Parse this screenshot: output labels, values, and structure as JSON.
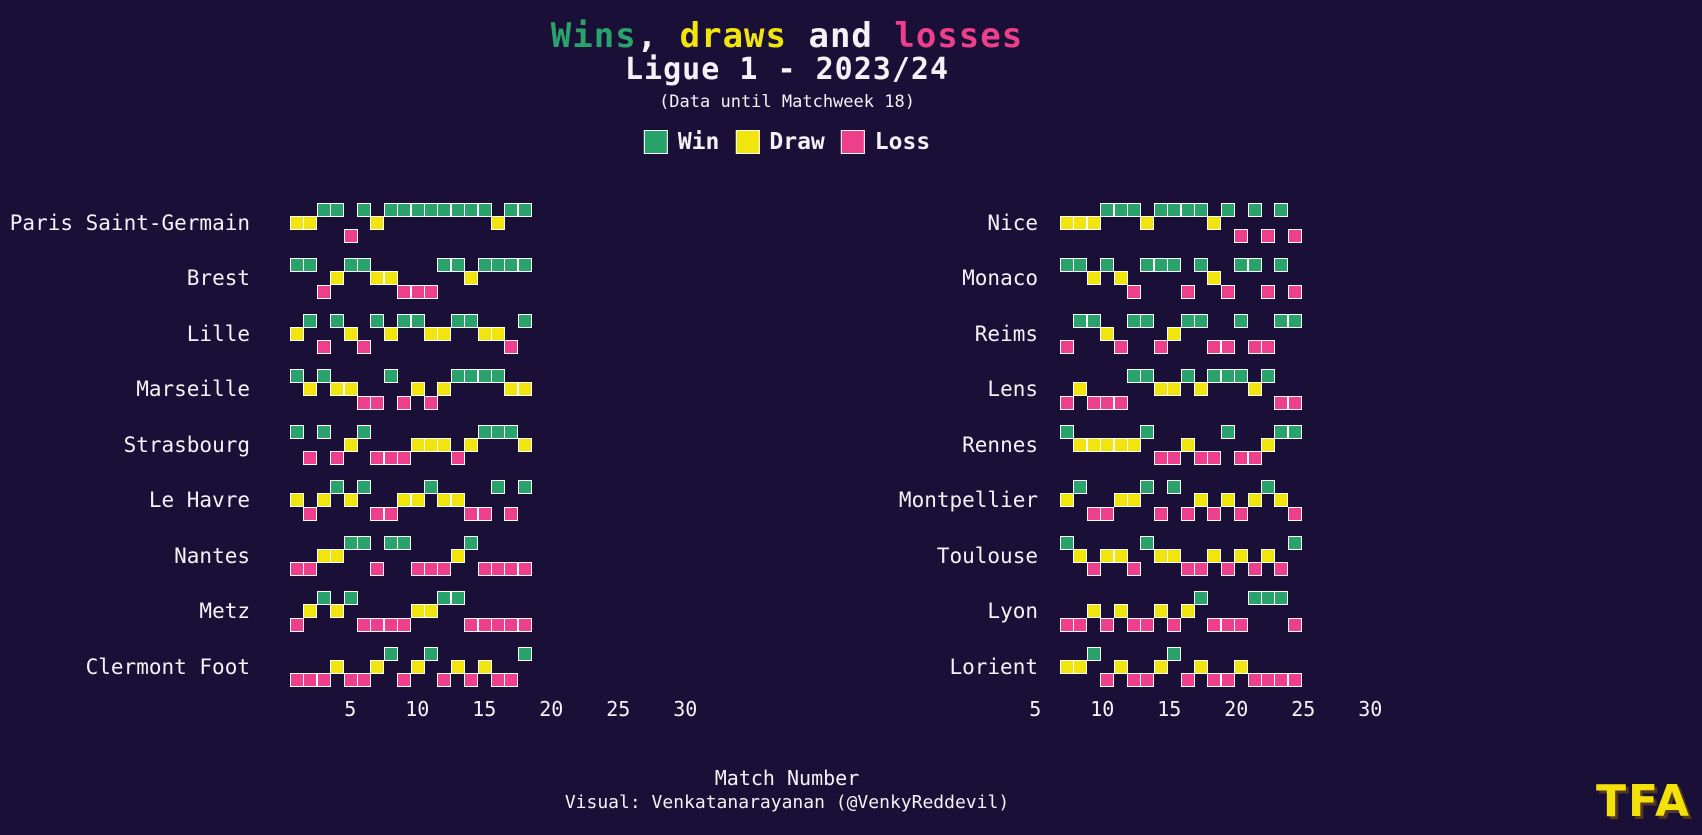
{
  "title": {
    "parts": [
      {
        "text": "Wins",
        "color_key": "win"
      },
      {
        "text": ", ",
        "color_key": "text"
      },
      {
        "text": "draws",
        "color_key": "draw"
      },
      {
        "text": " and ",
        "color_key": "text"
      },
      {
        "text": "losses",
        "color_key": "loss"
      }
    ]
  },
  "subtitle": "Ligue 1 - 2023/24",
  "note": "(Data until Matchweek 18)",
  "legend": [
    {
      "label": "Win",
      "key": "W"
    },
    {
      "label": "Draw",
      "key": "D"
    },
    {
      "label": "Loss",
      "key": "L"
    }
  ],
  "colors": {
    "win": "#2aa26b",
    "draw": "#f2e50e",
    "loss": "#ee3f8d",
    "background": "#1a0f36",
    "text": "#f5f1f7",
    "logo": "#f5e10a"
  },
  "xlabel": "Match Number",
  "credit": "Visual: Venkatanarayanan (@VenkyReddevil)",
  "logo_text": "TFA",
  "chart_data": {
    "type": "heatmap",
    "title": "Wins, draws and losses — Ligue 1 2023/24 (Data until Matchweek 18)",
    "xlabel": "Match Number",
    "x_ticks": [
      5,
      10,
      15,
      20,
      25,
      30
    ],
    "matchweeks": 18,
    "levels": {
      "W": "Win (top row)",
      "D": "Draw (middle row)",
      "L": "Loss (bottom row)"
    },
    "columns": [
      {
        "side": "left",
        "teams": [
          {
            "name": "Paris Saint-Germain",
            "results": "DDWWLWDWWWWWWWWDWW"
          },
          {
            "name": "Brest",
            "results": "WWLDWWDDLLLWWDWWWW"
          },
          {
            "name": "Lille",
            "results": "DWLWDLWDWWDDWWDDLW"
          },
          {
            "name": "Marseille",
            "results": "WDWDDLLWLDLDWWWWDD"
          },
          {
            "name": "Strasbourg",
            "results": "WLWLDWLLLDDDLDWWWD"
          },
          {
            "name": "Le Havre",
            "results": "DLDWDWLLDDWDDLLWLW"
          },
          {
            "name": "Nantes",
            "results": "LLDDWWLWWLLLDWLLLL"
          },
          {
            "name": "Metz",
            "results": "LDWDWLLLLDDWWLLLLL"
          },
          {
            "name": "Clermont Foot",
            "results": "LLLDLLDWLDWLDLDLLW"
          }
        ]
      },
      {
        "side": "right",
        "teams": [
          {
            "name": "Nice",
            "results": "DDDWWWDWWWWDWLWLWL"
          },
          {
            "name": "Monaco",
            "results": "WWDWDLWWWLWDLWWLWL"
          },
          {
            "name": "Reims",
            "results": "LWWDLWWLDWWLLWLLWW"
          },
          {
            "name": "Lens",
            "results": "LDLLLWWDDWDWWWDWLL"
          },
          {
            "name": "Rennes",
            "results": "WDDDDDWLLDLLWLLDWW"
          },
          {
            "name": "Montpellier",
            "results": "DWLLDDWLWLDLDLDWDL"
          },
          {
            "name": "Toulouse",
            "results": "WDLDDLWDDLLDLDLDLW"
          },
          {
            "name": "Lyon",
            "results": "LLDLDLLDLDWLLLWWWL"
          },
          {
            "name": "Lorient",
            "results": "DDWLDLLDWLDLLDLLLL"
          }
        ]
      }
    ]
  }
}
